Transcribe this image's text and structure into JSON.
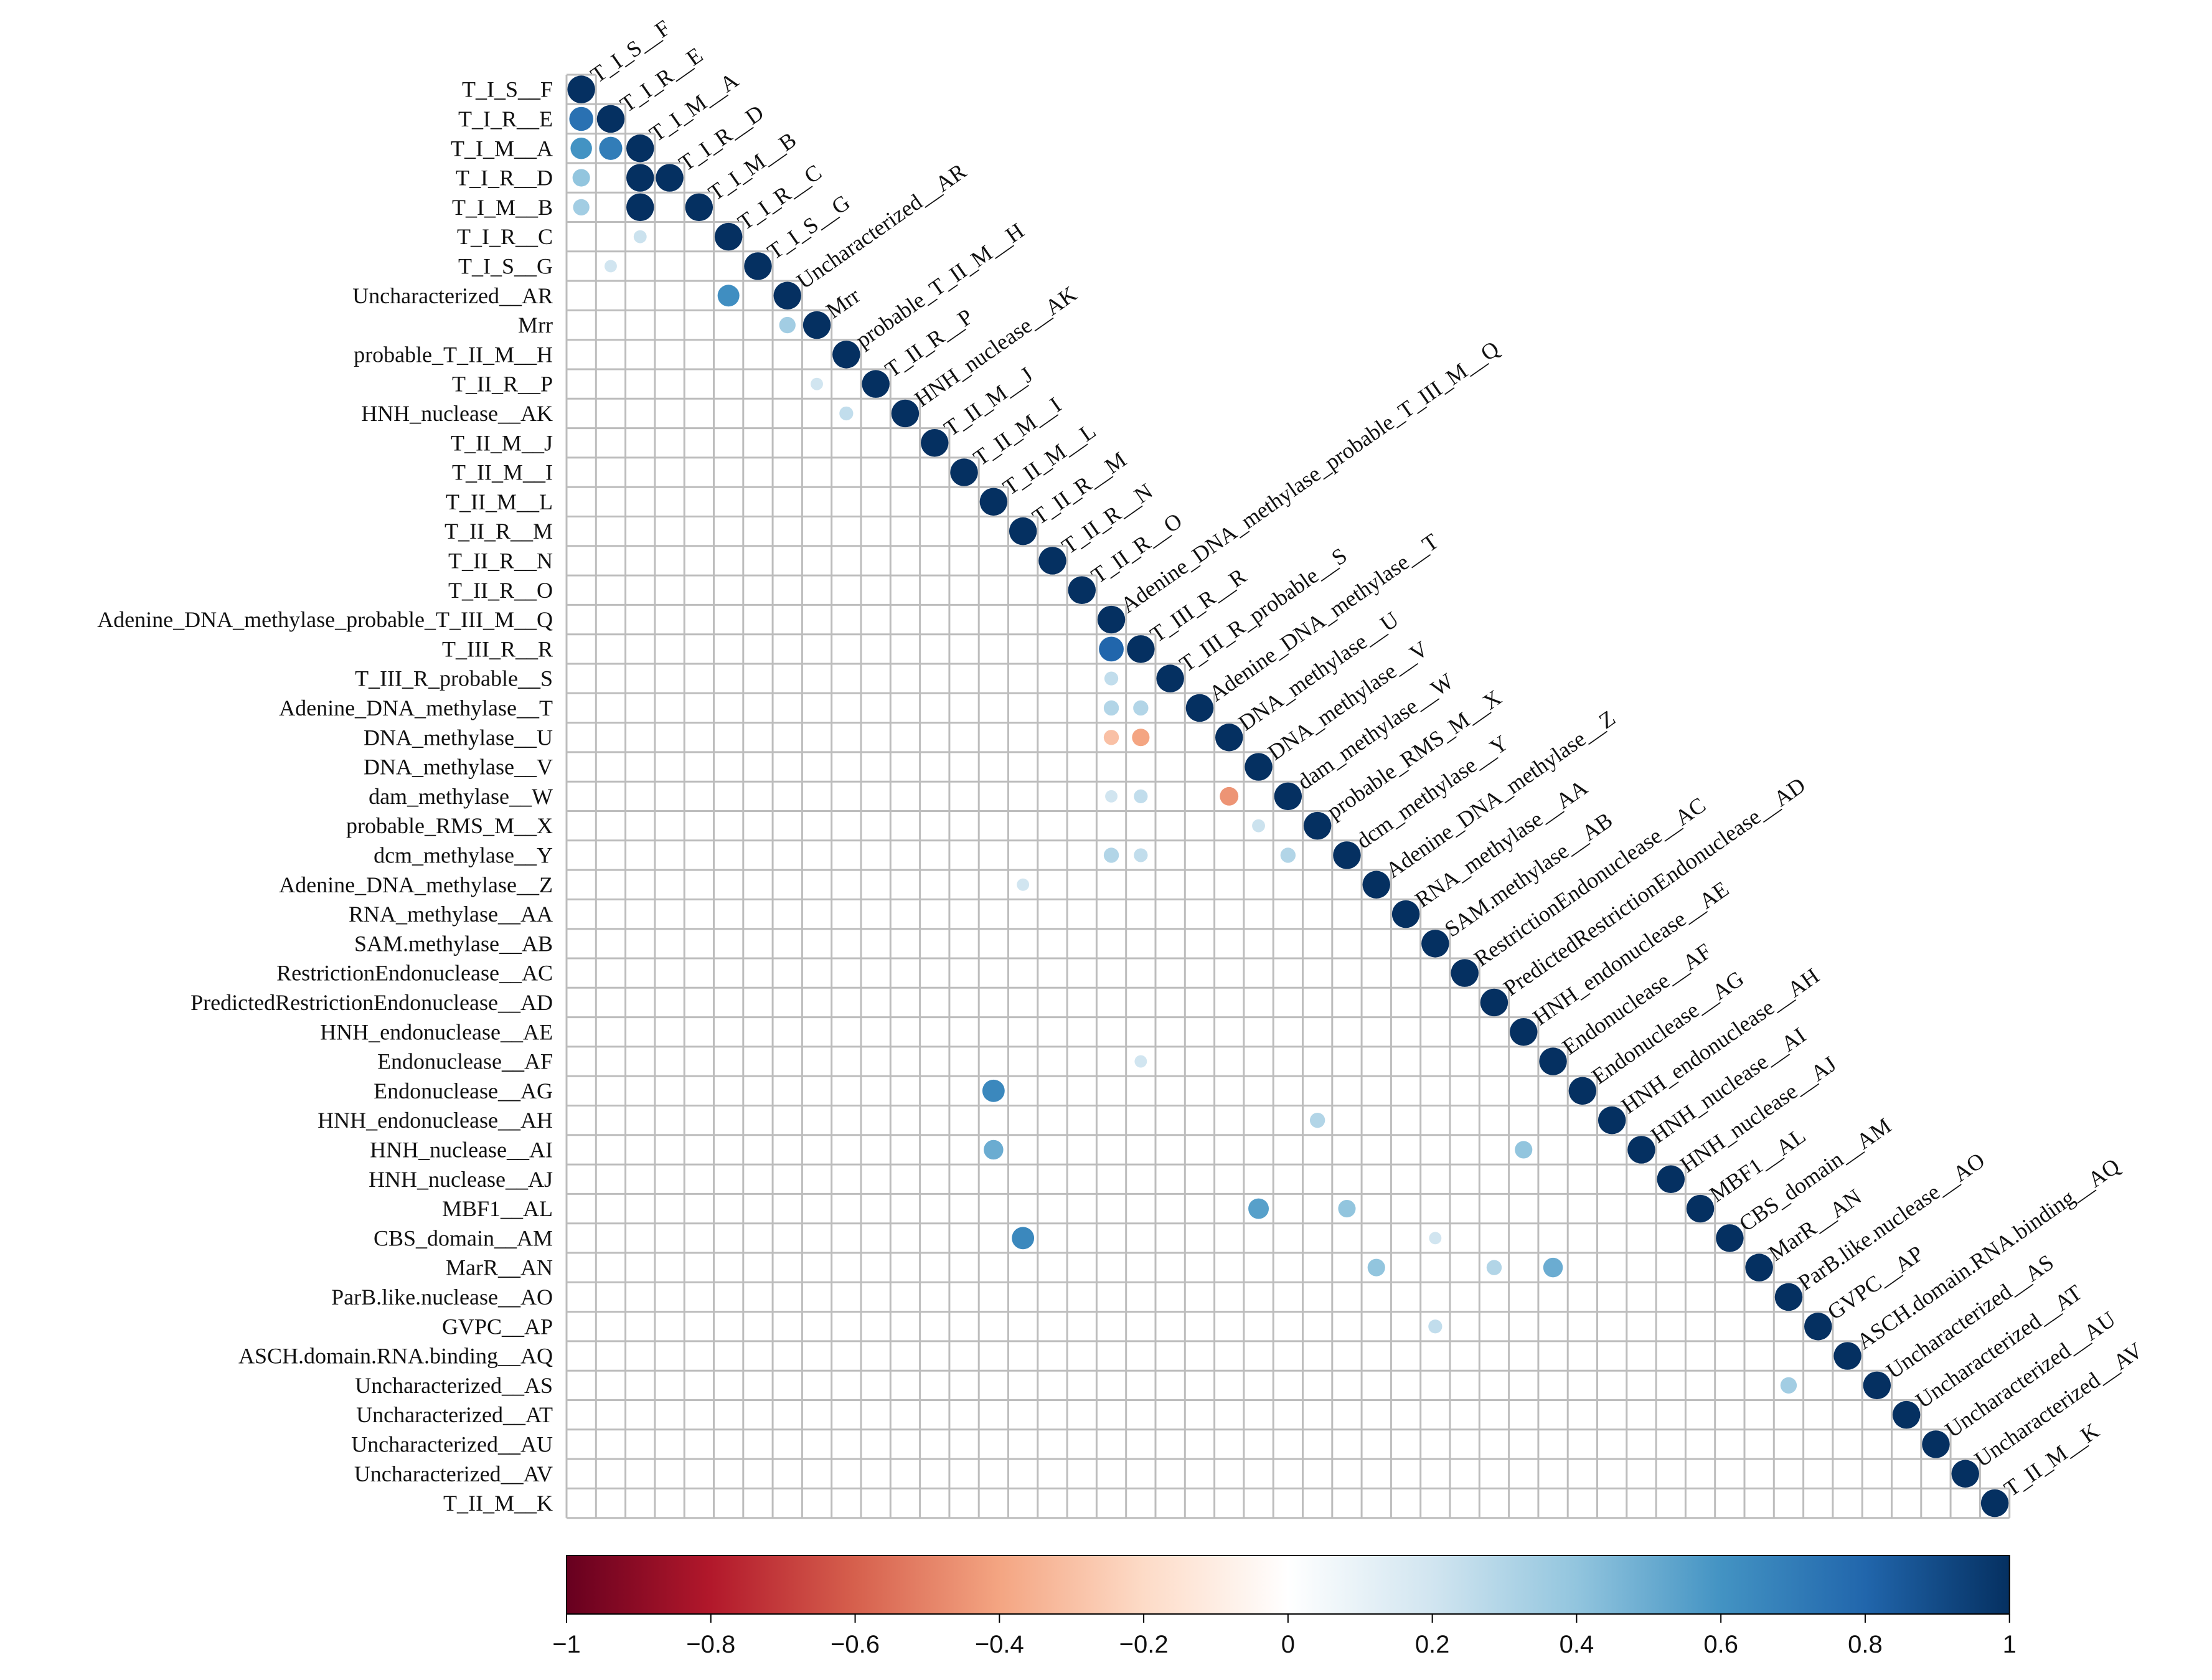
{
  "chart_data": {
    "type": "heatmap",
    "subtype": "correlation-matrix-lower-triangle",
    "title": "",
    "labels": [
      "T_I_S__F",
      "T_I_R__E",
      "T_I_M__A",
      "T_I_R__D",
      "T_I_M__B",
      "T_I_R__C",
      "T_I_S__G",
      "Uncharacterized__AR",
      "Mrr",
      "probable_T_II_M__H",
      "T_II_R__P",
      "HNH_nuclease__AK",
      "T_II_M__J",
      "T_II_M__I",
      "T_II_M__L",
      "T_II_R__M",
      "T_II_R__N",
      "T_II_R__O",
      "Adenine_DNA_methylase_probable_T_III_M__Q",
      "T_III_R__R",
      "T_III_R_probable__S",
      "Adenine_DNA_methylase__T",
      "DNA_methylase__U",
      "DNA_methylase__V",
      "dam_methylase__W",
      "probable_RMS_M__X",
      "dcm_methylase__Y",
      "Adenine_DNA_methylase__Z",
      "RNA_methylase__AA",
      "SAM.methylase__AB",
      "RestrictionEndonuclease__AC",
      "PredictedRestrictionEndonuclease__AD",
      "HNH_endonuclease__AE",
      "Endonuclease__AF",
      "Endonuclease__AG",
      "HNH_endonuclease__AH",
      "HNH_nuclease__AI",
      "HNH_nuclease__AJ",
      "MBF1__AL",
      "CBS_domain__AM",
      "MarR__AN",
      "ParB.like.nuclease__AO",
      "GVPC__AP",
      "ASCH.domain.RNA.binding__AQ",
      "Uncharacterized__AS",
      "Uncharacterized__AT",
      "Uncharacterized__AU",
      "Uncharacterized__AV",
      "T_II_M__K"
    ],
    "diagonal_value": 1.0,
    "off_diagonal": [
      {
        "row": "T_I_R__E",
        "col": "T_I_S__F",
        "value": 0.75
      },
      {
        "row": "T_I_M__A",
        "col": "T_I_S__F",
        "value": 0.6
      },
      {
        "row": "T_I_M__A",
        "col": "T_I_R__E",
        "value": 0.7
      },
      {
        "row": "T_I_R__D",
        "col": "T_I_S__F",
        "value": 0.4
      },
      {
        "row": "T_I_R__D",
        "col": "T_I_M__A",
        "value": 1.0
      },
      {
        "row": "T_I_M__B",
        "col": "T_I_S__F",
        "value": 0.35
      },
      {
        "row": "T_I_M__B",
        "col": "T_I_M__A",
        "value": 1.0
      },
      {
        "row": "T_I_R__C",
        "col": "T_I_M__A",
        "value": 0.22
      },
      {
        "row": "T_I_S__G",
        "col": "T_I_R__E",
        "value": 0.2
      },
      {
        "row": "Uncharacterized__AR",
        "col": "T_I_R__C",
        "value": 0.62
      },
      {
        "row": "Mrr",
        "col": "Uncharacterized__AR",
        "value": 0.35
      },
      {
        "row": "T_II_R__P",
        "col": "Mrr",
        "value": 0.2
      },
      {
        "row": "HNH_nuclease__AK",
        "col": "probable_T_II_M__H",
        "value": 0.25
      },
      {
        "row": "T_III_R__R",
        "col": "Adenine_DNA_methylase_probable_T_III_M__Q",
        "value": 0.8
      },
      {
        "row": "T_III_R_probable__S",
        "col": "Adenine_DNA_methylase_probable_T_III_M__Q",
        "value": 0.25
      },
      {
        "row": "Adenine_DNA_methylase__T",
        "col": "Adenine_DNA_methylase_probable_T_III_M__Q",
        "value": 0.3
      },
      {
        "row": "Adenine_DNA_methylase__T",
        "col": "T_III_R__R",
        "value": 0.3
      },
      {
        "row": "DNA_methylase__U",
        "col": "Adenine_DNA_methylase_probable_T_III_M__Q",
        "value": -0.3
      },
      {
        "row": "DNA_methylase__U",
        "col": "T_III_R__R",
        "value": -0.4
      },
      {
        "row": "dam_methylase__W",
        "col": "Adenine_DNA_methylase_probable_T_III_M__Q",
        "value": 0.2
      },
      {
        "row": "dam_methylase__W",
        "col": "T_III_R__R",
        "value": 0.25
      },
      {
        "row": "dam_methylase__W",
        "col": "DNA_methylase__U",
        "value": -0.45
      },
      {
        "row": "probable_RMS_M__X",
        "col": "DNA_methylase__V",
        "value": 0.22
      },
      {
        "row": "dcm_methylase__Y",
        "col": "Adenine_DNA_methylase_probable_T_III_M__Q",
        "value": 0.3
      },
      {
        "row": "dcm_methylase__Y",
        "col": "T_III_R__R",
        "value": 0.25
      },
      {
        "row": "dcm_methylase__Y",
        "col": "dam_methylase__W",
        "value": 0.3
      },
      {
        "row": "Adenine_DNA_methylase__Z",
        "col": "T_II_R__M",
        "value": 0.2
      },
      {
        "row": "Endonuclease__AF",
        "col": "T_III_R__R",
        "value": 0.2
      },
      {
        "row": "Endonuclease__AG",
        "col": "T_II_M__L",
        "value": 0.65
      },
      {
        "row": "HNH_endonuclease__AH",
        "col": "probable_RMS_M__X",
        "value": 0.3
      },
      {
        "row": "HNH_nuclease__AI",
        "col": "T_II_M__L",
        "value": 0.5
      },
      {
        "row": "HNH_nuclease__AI",
        "col": "HNH_endonuclease__AE",
        "value": 0.4
      },
      {
        "row": "MBF1__AL",
        "col": "DNA_methylase__V",
        "value": 0.55
      },
      {
        "row": "MBF1__AL",
        "col": "dcm_methylase__Y",
        "value": 0.4
      },
      {
        "row": "CBS_domain__AM",
        "col": "T_II_R__M",
        "value": 0.65
      },
      {
        "row": "CBS_domain__AM",
        "col": "SAM.methylase__AB",
        "value": 0.2
      },
      {
        "row": "MarR__AN",
        "col": "Adenine_DNA_methylase__Z",
        "value": 0.4
      },
      {
        "row": "MarR__AN",
        "col": "PredictedRestrictionEndonuclease__AD",
        "value": 0.3
      },
      {
        "row": "MarR__AN",
        "col": "Endonuclease__AF",
        "value": 0.5
      },
      {
        "row": "GVPC__AP",
        "col": "SAM.methylase__AB",
        "value": 0.25
      },
      {
        "row": "Uncharacterized__AS",
        "col": "ParB.like.nuclease__AO",
        "value": 0.35
      }
    ],
    "colorbar": {
      "min": -1,
      "max": 1,
      "ticks": [
        -1,
        -0.8,
        -0.6,
        -0.4,
        -0.2,
        0,
        0.2,
        0.4,
        0.6,
        0.8,
        1
      ],
      "tick_labels": [
        "−1",
        "−0.8",
        "−0.6",
        "−0.4",
        "−0.2",
        "0",
        "0.2",
        "0.4",
        "0.6",
        "0.8",
        "1"
      ],
      "colors": [
        "#67001f",
        "#b2182b",
        "#d6604d",
        "#f4a582",
        "#fddbc7",
        "#ffffff",
        "#d1e5f0",
        "#92c5de",
        "#4393c3",
        "#2166ac",
        "#053061"
      ],
      "stops": [
        "#67001F",
        "#B2182B",
        "#D6604D",
        "#F4A582",
        "#FDDBC7",
        "#FFFFFF",
        "#D1E5F0",
        "#92C5DE",
        "#4393C3",
        "#2166AC",
        "#053061"
      ]
    },
    "grid": true,
    "legend": "bottom"
  }
}
